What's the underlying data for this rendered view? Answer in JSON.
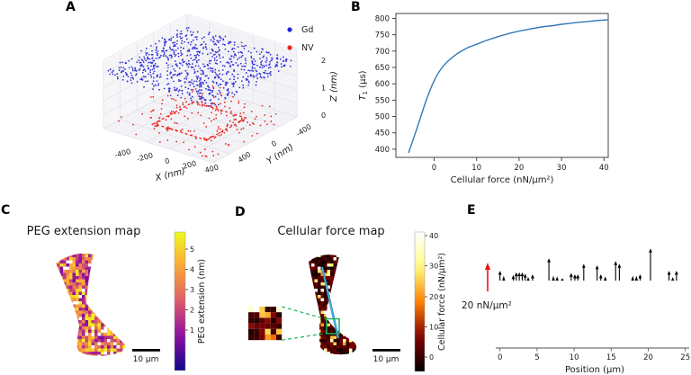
{
  "figure_labels": {
    "A": "A",
    "B": "B",
    "C": "C",
    "D": "D",
    "E": "E"
  },
  "colors": {
    "gd_blue": "#2323d6",
    "nv_red": "#e8261f",
    "curve_blue": "#3579b8",
    "profile_cyan": "#45c2db",
    "profile_blue": "#2d77c2",
    "inset_green": "#1cb35c",
    "ref_red": "#e81416",
    "axis": "#333333",
    "pane_fill": "#f3f3f7",
    "pane_grid": "#dcdce4"
  },
  "chart_data": [
    {
      "panel": "A",
      "type": "scatter",
      "projection": "3d",
      "xlabel": "X (nm)",
      "ylabel": "Y (nm)",
      "zlabel": "Z (nm)",
      "x_ticks": [
        "-400",
        "-200",
        "0",
        "200",
        "400"
      ],
      "y_ticks": [
        "400",
        "0",
        "-400"
      ],
      "z_ticks": [
        "0",
        "1",
        "2"
      ],
      "legend": [
        {
          "label": "Gd",
          "color": "#2323d6"
        },
        {
          "label": "NV",
          "color": "#e8261f"
        }
      ],
      "series": [
        {
          "name": "Gd",
          "z_nm": 2.1,
          "n_points": 800,
          "xy_range_nm": [
            -500,
            500
          ],
          "description": "dense plane of blue dots at Z ~ 2 nm"
        },
        {
          "name": "NV",
          "z_nm": 0.1,
          "n_points": 210,
          "xy_range_nm": [
            -500,
            500
          ],
          "description": "sparse red dots near Z = 0 with red dashed square outline ~ +/-250 nm"
        }
      ]
    },
    {
      "panel": "B",
      "type": "line",
      "xlabel": "Cellular force (nN/μm²)",
      "ylabel": "T1 (μs)",
      "ylabel_parts": [
        "T",
        "1",
        " (μs)"
      ],
      "x_ticks": [
        0,
        10,
        20,
        30,
        40
      ],
      "y_ticks": [
        400,
        450,
        500,
        550,
        600,
        650,
        700,
        750,
        800
      ],
      "xlim": [
        -9,
        41
      ],
      "ylim": [
        375,
        815
      ],
      "points": [
        [
          -6,
          390
        ],
        [
          -5.5,
          408
        ],
        [
          -5,
          427
        ],
        [
          -4.5,
          446
        ],
        [
          -4,
          465
        ],
        [
          -3.5,
          485
        ],
        [
          -3,
          505
        ],
        [
          -2.5,
          525
        ],
        [
          -2,
          544
        ],
        [
          -1.5,
          562
        ],
        [
          -1,
          579
        ],
        [
          -0.5,
          595
        ],
        [
          0,
          609
        ],
        [
          0.5,
          622
        ],
        [
          1,
          633
        ],
        [
          1.5,
          643
        ],
        [
          2,
          652
        ],
        [
          3,
          666
        ],
        [
          4,
          678
        ],
        [
          5,
          688
        ],
        [
          6,
          697
        ],
        [
          7,
          704
        ],
        [
          8,
          711
        ],
        [
          9,
          716
        ],
        [
          10,
          721
        ],
        [
          12,
          731
        ],
        [
          14,
          740
        ],
        [
          16,
          748
        ],
        [
          18,
          755
        ],
        [
          20,
          761
        ],
        [
          22,
          766
        ],
        [
          24,
          771
        ],
        [
          26,
          775
        ],
        [
          28,
          778
        ],
        [
          30,
          782
        ],
        [
          32,
          785
        ],
        [
          34,
          788
        ],
        [
          36,
          790
        ],
        [
          38,
          793
        ],
        [
          41,
          796
        ]
      ]
    },
    {
      "panel": "C",
      "type": "heatmap",
      "title": "PEG extension map",
      "colormap": "plasma",
      "colorbar_label": "PEG extension (nm)",
      "colorbar_ticks": [
        1,
        2,
        3,
        4,
        5
      ],
      "value_range_nm": [
        0.5,
        5.5
      ],
      "scale_bar_label": "10 μm",
      "description": "bowtie-shaped cell footprint filled with mosaic of PEG extension pixels"
    },
    {
      "panel": "D",
      "type": "heatmap",
      "title": "Cellular force map",
      "colormap": "afmhot",
      "colorbar_label": "Cellular force (nN/μm²)",
      "colorbar_ticks": [
        0,
        10,
        20,
        30,
        40
      ],
      "value_range": [
        -2,
        40
      ],
      "scale_bar_label": "10 μm",
      "annotations": [
        "cyan line profile along cell axis",
        "green box with dashed connectors to zoomed 6x6 pixel inset"
      ]
    },
    {
      "panel": "E",
      "type": "quiver",
      "xlabel": "Position (μm)",
      "x_ticks": [
        0,
        5,
        10,
        15,
        20,
        25
      ],
      "reference_arrow": {
        "label": "20 nN/μm²",
        "value": 20
      },
      "arrows": [
        [
          0.0,
          7
        ],
        [
          0.5,
          3.5
        ],
        [
          1.8,
          4
        ],
        [
          2.2,
          6
        ],
        [
          2.6,
          6
        ],
        [
          3.0,
          6
        ],
        [
          3.4,
          5
        ],
        [
          3.8,
          2.5
        ],
        [
          4.4,
          4.5
        ],
        [
          6.6,
          16
        ],
        [
          7.2,
          3.5
        ],
        [
          7.7,
          3
        ],
        [
          8.4,
          1.5
        ],
        [
          9.6,
          5.5
        ],
        [
          10.1,
          4.5
        ],
        [
          10.5,
          4.5
        ],
        [
          11.3,
          12
        ],
        [
          13.1,
          11
        ],
        [
          13.6,
          4.5
        ],
        [
          14.2,
          3
        ],
        [
          15.6,
          14
        ],
        [
          16.1,
          12
        ],
        [
          17.9,
          3.5
        ],
        [
          18.4,
          3.5
        ],
        [
          18.9,
          4.5
        ],
        [
          20.3,
          23
        ],
        [
          22.8,
          7
        ],
        [
          23.3,
          2.5
        ],
        [
          23.8,
          7
        ]
      ]
    }
  ]
}
